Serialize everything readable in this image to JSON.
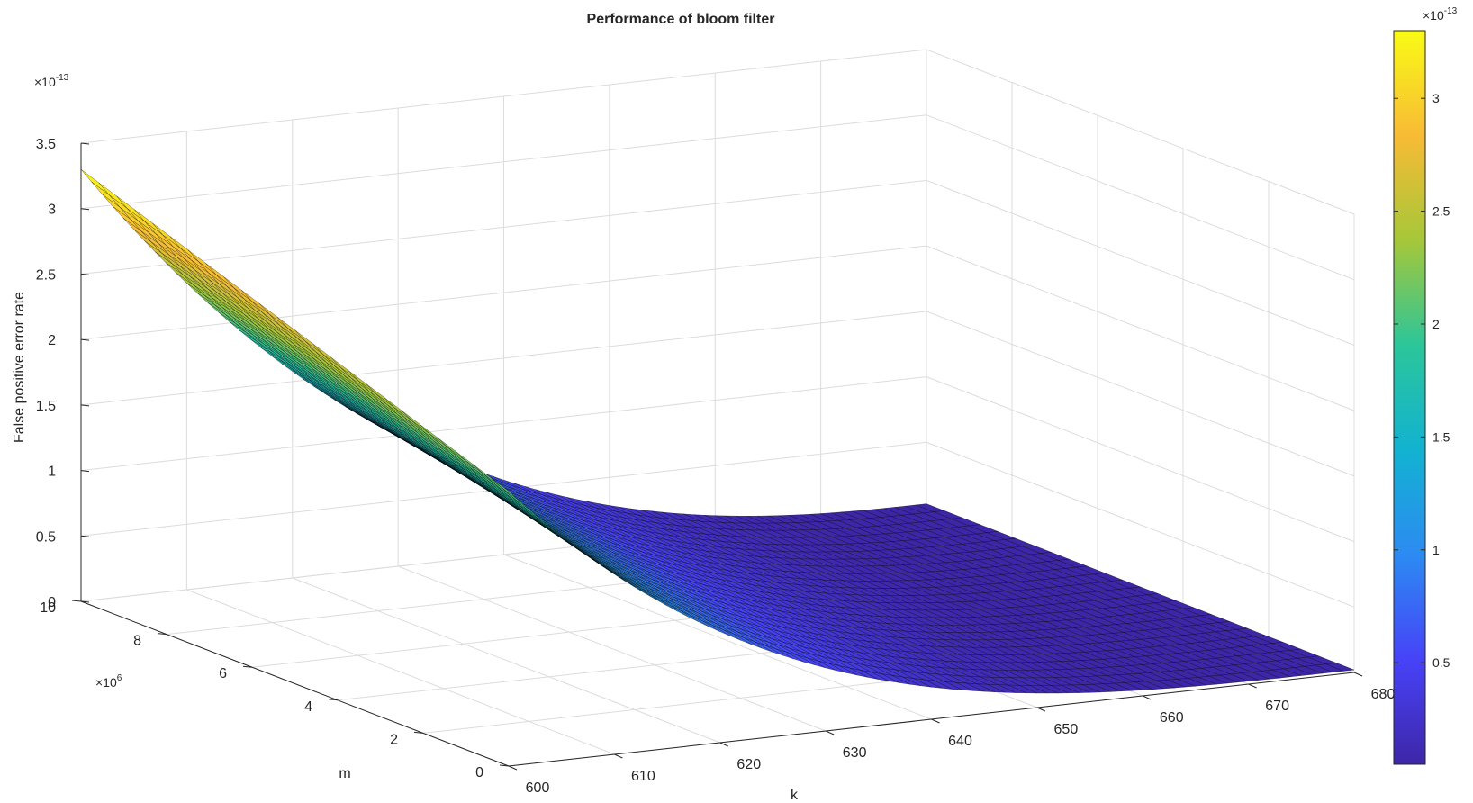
{
  "chart_data": {
    "type": "surface",
    "title": "Performance of bloom filter",
    "xlabel": "k",
    "ylabel": "m",
    "zlabel": "False positive error rate",
    "x_ticks": [
      600,
      610,
      620,
      630,
      640,
      650,
      660,
      670,
      680
    ],
    "y_ticks": [
      0,
      2,
      4,
      6,
      8,
      10
    ],
    "y_multiplier": "×10",
    "y_multiplier_exp": "6",
    "z_ticks": [
      "0",
      "0.5",
      "1",
      "1.5",
      "2",
      "2.5",
      "3",
      "3.5"
    ],
    "z_multiplier": "×10",
    "z_multiplier_exp": "-13",
    "xlim": [
      600,
      680
    ],
    "ylim": [
      0,
      10
    ],
    "zlim": [
      0,
      3.5
    ],
    "grid": true,
    "colormap": "parula",
    "colormap_stops": [
      "#3e26a8",
      "#4743f8",
      "#2c8bf2",
      "#12b2d1",
      "#2bc69a",
      "#a6c739",
      "#f8bb35",
      "#f9fb15"
    ],
    "surface_corner_values": [
      {
        "k": 600,
        "m": 10,
        "value": 3.3
      },
      {
        "k": 600,
        "m": 0,
        "value": 2.1
      },
      {
        "k": 680,
        "m": 10,
        "value": 0.03
      },
      {
        "k": 680,
        "m": 0,
        "value": 0.02
      }
    ],
    "colorbar": {
      "ticks": [
        "0.5",
        "1",
        "1.5",
        "2",
        "2.5",
        "3"
      ],
      "multiplier": "×10",
      "multiplier_exp": "-13",
      "range": [
        0.05,
        3.3
      ]
    }
  }
}
